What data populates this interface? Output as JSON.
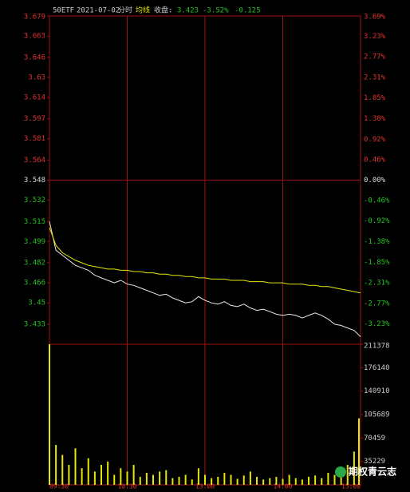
{
  "header": {
    "symbol": "50ETF",
    "date": "2021-07-02",
    "mode": "分时",
    "avg_label": "均线",
    "close_label": "收盘:",
    "close": "3.423",
    "change_pct": "-3.52%",
    "change": "-0.125"
  },
  "watermark": "期权青云志",
  "chart_data": [
    {
      "type": "line",
      "x": [
        0,
        5,
        10,
        15,
        20,
        25,
        30,
        35,
        40,
        45,
        50,
        55,
        60,
        65,
        70,
        75,
        80,
        85,
        90,
        95,
        100,
        105,
        110,
        115,
        120,
        125,
        130,
        135,
        140,
        145,
        150,
        155,
        160,
        165,
        170,
        175,
        180,
        185,
        190,
        195,
        200,
        205,
        210,
        215,
        220,
        225,
        230,
        235,
        240
      ],
      "series": [
        {
          "name": "分时",
          "color": "#e8e8e8",
          "values": [
            3.515,
            3.492,
            3.488,
            3.484,
            3.48,
            3.478,
            3.476,
            3.472,
            3.47,
            3.468,
            3.466,
            3.468,
            3.465,
            3.464,
            3.462,
            3.46,
            3.458,
            3.456,
            3.457,
            3.454,
            3.452,
            3.45,
            3.451,
            3.455,
            3.452,
            3.45,
            3.449,
            3.451,
            3.448,
            3.447,
            3.449,
            3.446,
            3.444,
            3.445,
            3.443,
            3.441,
            3.44,
            3.441,
            3.44,
            3.438,
            3.44,
            3.442,
            3.44,
            3.437,
            3.433,
            3.432,
            3.43,
            3.428,
            3.423
          ]
        },
        {
          "name": "均线",
          "color": "#e6e600",
          "values": [
            3.51,
            3.496,
            3.49,
            3.487,
            3.484,
            3.482,
            3.48,
            3.479,
            3.478,
            3.477,
            3.477,
            3.476,
            3.476,
            3.475,
            3.475,
            3.474,
            3.474,
            3.473,
            3.473,
            3.472,
            3.472,
            3.471,
            3.471,
            3.47,
            3.47,
            3.469,
            3.469,
            3.469,
            3.468,
            3.468,
            3.468,
            3.467,
            3.467,
            3.467,
            3.466,
            3.466,
            3.466,
            3.465,
            3.465,
            3.465,
            3.464,
            3.464,
            3.463,
            3.463,
            3.462,
            3.461,
            3.46,
            3.459,
            3.458
          ]
        }
      ],
      "xlim": [
        0,
        240
      ],
      "xticks": [
        0,
        60,
        120,
        180,
        240
      ],
      "ylim": [
        3.417,
        3.679
      ],
      "yticks": [
        3.679,
        3.663,
        3.646,
        3.63,
        3.614,
        3.597,
        3.581,
        3.564,
        3.548,
        3.532,
        3.515,
        3.499,
        3.482,
        3.466,
        3.45,
        3.433
      ],
      "y2lim": [
        -3.69,
        3.69
      ],
      "y2ticks": [
        {
          "value": 3.69,
          "label": "3.69%"
        },
        {
          "value": 3.23,
          "label": "3.23%"
        },
        {
          "value": 2.77,
          "label": "2.77%"
        },
        {
          "value": 2.31,
          "label": "2.31%"
        },
        {
          "value": 1.85,
          "label": "1.85%"
        },
        {
          "value": 1.38,
          "label": "1.38%"
        },
        {
          "value": 0.92,
          "label": "0.92%"
        },
        {
          "value": 0.46,
          "label": "0.46%"
        },
        {
          "value": 0,
          "label": "0.00%"
        },
        {
          "value": -0.46,
          "label": "-0.46%"
        },
        {
          "value": -0.92,
          "label": "-0.92%"
        },
        {
          "value": -1.38,
          "label": "-1.38%"
        },
        {
          "value": -1.85,
          "label": "-1.85%"
        },
        {
          "value": -2.31,
          "label": "-2.31%"
        },
        {
          "value": -2.77,
          "label": "-2.77%"
        },
        {
          "value": -3.23,
          "label": "-3.23%"
        }
      ],
      "up_color": "#e0322e",
      "down_color": "#22c322",
      "flat_color": "#dddddd",
      "grid_color": "#a01010"
    },
    {
      "type": "bar",
      "x": [
        0,
        5,
        10,
        15,
        20,
        25,
        30,
        35,
        40,
        45,
        50,
        55,
        60,
        65,
        70,
        75,
        80,
        85,
        90,
        95,
        100,
        105,
        110,
        115,
        120,
        125,
        130,
        135,
        140,
        145,
        150,
        155,
        160,
        165,
        170,
        175,
        180,
        185,
        190,
        195,
        200,
        205,
        210,
        215,
        220,
        225,
        230,
        235,
        240
      ],
      "values": [
        211378,
        60000,
        45000,
        30000,
        55000,
        25000,
        40000,
        20000,
        30000,
        35000,
        15000,
        25000,
        20000,
        30000,
        12000,
        18000,
        15000,
        20000,
        22000,
        10000,
        12000,
        15000,
        8000,
        25000,
        15000,
        10000,
        12000,
        18000,
        15000,
        9000,
        14000,
        20000,
        12000,
        8000,
        10000,
        12000,
        9000,
        15000,
        10000,
        8000,
        12000,
        14000,
        10000,
        18000,
        15000,
        20000,
        30000,
        50000,
        100000
      ],
      "color": "#e6e600",
      "xlim": [
        0,
        240
      ],
      "xticks": [
        {
          "value": 0,
          "label": "09:30"
        },
        {
          "value": 60,
          "label": "10:30"
        },
        {
          "value": 120,
          "label": "13:00"
        },
        {
          "value": 180,
          "label": "14:00"
        },
        {
          "value": 240,
          "label": "15:00"
        }
      ],
      "ylim": [
        0,
        211378
      ],
      "yticks": [
        211378,
        176140,
        140910,
        105689,
        70459,
        35229
      ]
    }
  ]
}
